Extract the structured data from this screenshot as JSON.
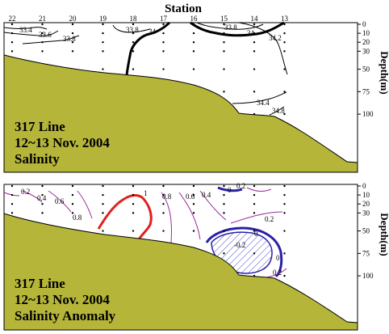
{
  "chart_data": [
    {
      "type": "contour",
      "title": "Station",
      "ylabel": "Depth(m)",
      "x": {
        "label": "Station",
        "ticks": [
          "22",
          "21",
          "20",
          "19",
          "18",
          "17",
          "16",
          "15",
          "14",
          "13"
        ]
      },
      "y": {
        "label": "Depth(m)",
        "ticks": [
          0,
          10,
          20,
          30,
          50,
          75,
          100
        ],
        "ylim": [
          0,
          135
        ]
      },
      "panel_text": [
        "317 Line",
        "12~13 Nov. 2004",
        "Salinity"
      ],
      "contour_labels": [
        "33.4",
        "33.6",
        "33.8",
        "33.8",
        "34",
        "33.8",
        "34",
        "34.2",
        "34.4",
        "34.8"
      ],
      "contour_levels": [
        33.4,
        33.6,
        33.8,
        34.0,
        34.2,
        34.4,
        34.8
      ],
      "colors": {
        "contour": "#000000",
        "terrain": "#b5b53a"
      }
    },
    {
      "type": "contour",
      "ylabel": "Depth(m)",
      "x": {
        "label": "Station",
        "ticks": [
          "22",
          "21",
          "20",
          "19",
          "18",
          "17",
          "16",
          "15",
          "14",
          "13"
        ]
      },
      "y": {
        "label": "Depth(m)",
        "ticks": [
          0,
          10,
          20,
          30,
          50,
          75,
          100
        ],
        "ylim": [
          0,
          135
        ]
      },
      "panel_text": [
        "317 Line",
        "12~13 Nov. 2004",
        "Salinity Anomaly"
      ],
      "contour_labels": [
        "0.2",
        "0.4",
        "0.6",
        "0.8",
        "1",
        "0.8",
        "0.6",
        "0.4",
        "0.2",
        "0",
        "0.2",
        "0",
        "-0.2",
        "0",
        "0.2"
      ],
      "contour_levels": [
        -0.2,
        0,
        0.2,
        0.4,
        0.6,
        0.8,
        1.0
      ],
      "colors": {
        "positive": "#9b2c9b",
        "zero": "#2a1fa8",
        "negative_fill": "#3b3bc8",
        "max": "#e0211b",
        "terrain": "#b5b53a"
      }
    }
  ]
}
